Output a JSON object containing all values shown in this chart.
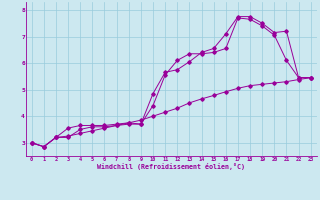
{
  "xlabel": "Windchill (Refroidissement éolien,°C)",
  "bg_color": "#cce8f0",
  "line_color": "#990099",
  "grid_color": "#99ccdd",
  "xlim": [
    -0.5,
    23.5
  ],
  "ylim": [
    2.5,
    8.3
  ],
  "xticks": [
    0,
    1,
    2,
    3,
    4,
    5,
    6,
    7,
    8,
    9,
    10,
    11,
    12,
    13,
    14,
    15,
    16,
    17,
    18,
    19,
    20,
    21,
    22,
    23
  ],
  "yticks": [
    3,
    4,
    5,
    6,
    7,
    8
  ],
  "line1_x": [
    0,
    1,
    2,
    3,
    4,
    5,
    6,
    7,
    8,
    9,
    10,
    11,
    12,
    13,
    14,
    15,
    16,
    17,
    18,
    19,
    20,
    21,
    22,
    23
  ],
  "line1_y": [
    3.0,
    2.85,
    3.2,
    3.55,
    3.65,
    3.65,
    3.65,
    3.7,
    3.75,
    3.7,
    4.85,
    5.65,
    5.75,
    6.05,
    6.4,
    6.55,
    7.1,
    7.75,
    7.75,
    7.5,
    7.15,
    7.2,
    5.45,
    5.45
  ],
  "line2_x": [
    0,
    1,
    2,
    3,
    4,
    5,
    6,
    7,
    8,
    9,
    10,
    11,
    12,
    13,
    14,
    15,
    16,
    17,
    18,
    19,
    20,
    21,
    22,
    23
  ],
  "line2_y": [
    3.0,
    2.85,
    3.2,
    3.2,
    3.5,
    3.6,
    3.6,
    3.65,
    3.7,
    3.7,
    4.4,
    5.55,
    6.1,
    6.35,
    6.35,
    6.4,
    6.55,
    7.7,
    7.65,
    7.4,
    7.05,
    6.1,
    5.45,
    5.45
  ],
  "line3_x": [
    0,
    1,
    2,
    3,
    4,
    5,
    6,
    7,
    8,
    9,
    10,
    11,
    12,
    13,
    14,
    15,
    16,
    17,
    18,
    19,
    20,
    21,
    22,
    23
  ],
  "line3_y": [
    3.0,
    2.85,
    3.2,
    3.25,
    3.35,
    3.45,
    3.55,
    3.65,
    3.75,
    3.85,
    4.0,
    4.15,
    4.3,
    4.5,
    4.65,
    4.78,
    4.92,
    5.05,
    5.15,
    5.2,
    5.25,
    5.3,
    5.38,
    5.45
  ]
}
